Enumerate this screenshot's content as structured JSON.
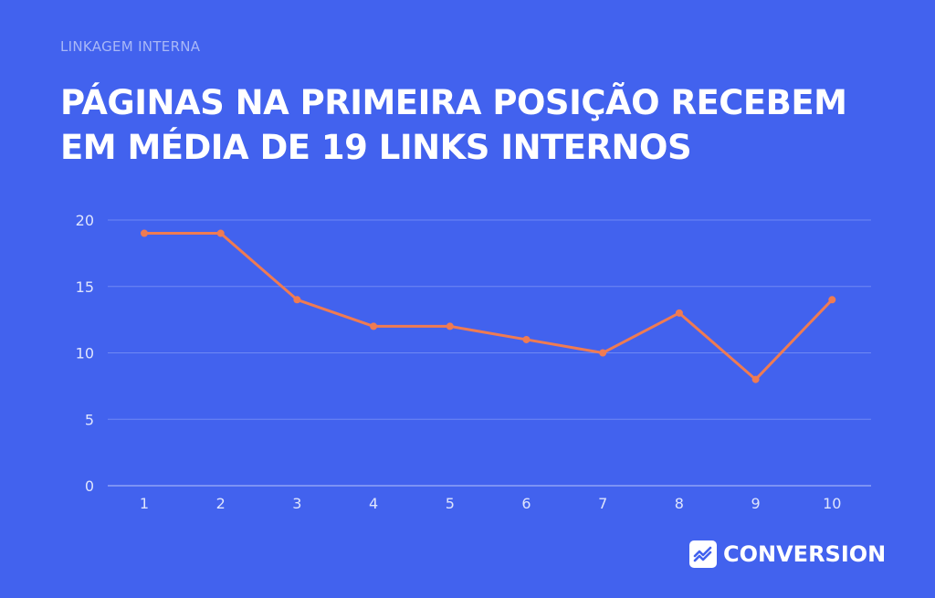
{
  "eyebrow": "LINKAGEM INTERNA",
  "headline": {
    "line1": "PÁGINAS NA PRIMEIRA POSIÇÃO RECEBEM",
    "line2": "EM MÉDIA DE 19 LINKS INTERNOS"
  },
  "brand": {
    "name": "CONVERSION",
    "icon": "chart-trend-icon"
  },
  "colors": {
    "background": "#4262ee",
    "line": "#ef7b52",
    "grid": "#6f88f4",
    "tick_text": "#dfe5fd"
  },
  "chart_data": {
    "type": "line",
    "title": "",
    "xlabel": "",
    "ylabel": "",
    "x": [
      1,
      2,
      3,
      4,
      5,
      6,
      7,
      8,
      9,
      10
    ],
    "series": [
      {
        "values": [
          19,
          19,
          14,
          12,
          12,
          11,
          10,
          13,
          8,
          14
        ]
      }
    ],
    "ylim": [
      0,
      20
    ],
    "yticks": [
      0,
      5,
      10,
      15,
      20
    ],
    "grid": true,
    "legend": "none"
  }
}
